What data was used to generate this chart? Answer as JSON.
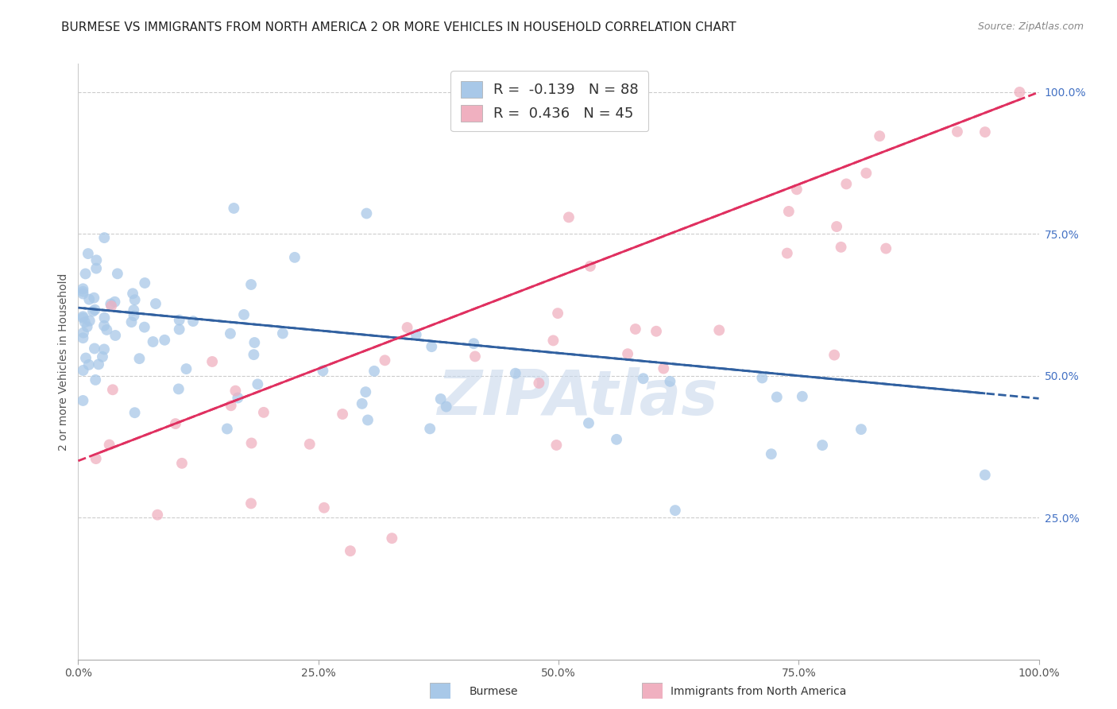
{
  "title": "BURMESE VS IMMIGRANTS FROM NORTH AMERICA 2 OR MORE VEHICLES IN HOUSEHOLD CORRELATION CHART",
  "source": "Source: ZipAtlas.com",
  "ylabel": "2 or more Vehicles in Household",
  "xlim": [
    0,
    100
  ],
  "ylim": [
    0,
    105
  ],
  "xtick_labels": [
    "0.0%",
    "25.0%",
    "50.0%",
    "75.0%",
    "100.0%"
  ],
  "ytick_labels": [
    "25.0%",
    "50.0%",
    "75.0%",
    "100.0%"
  ],
  "blue_color": "#a8c8e8",
  "pink_color": "#f0b0c0",
  "blue_line_color": "#3060a0",
  "pink_line_color": "#e03060",
  "R_blue": -0.139,
  "N_blue": 88,
  "R_pink": 0.436,
  "N_pink": 45,
  "watermark": "ZIPAtlas",
  "legend_label_blue": "Burmese",
  "legend_label_pink": "Immigrants from North America",
  "blue_R_color": "#e03060",
  "blue_N_color": "#3060a0",
  "pink_R_color": "#e03060",
  "pink_N_color": "#3060a0"
}
